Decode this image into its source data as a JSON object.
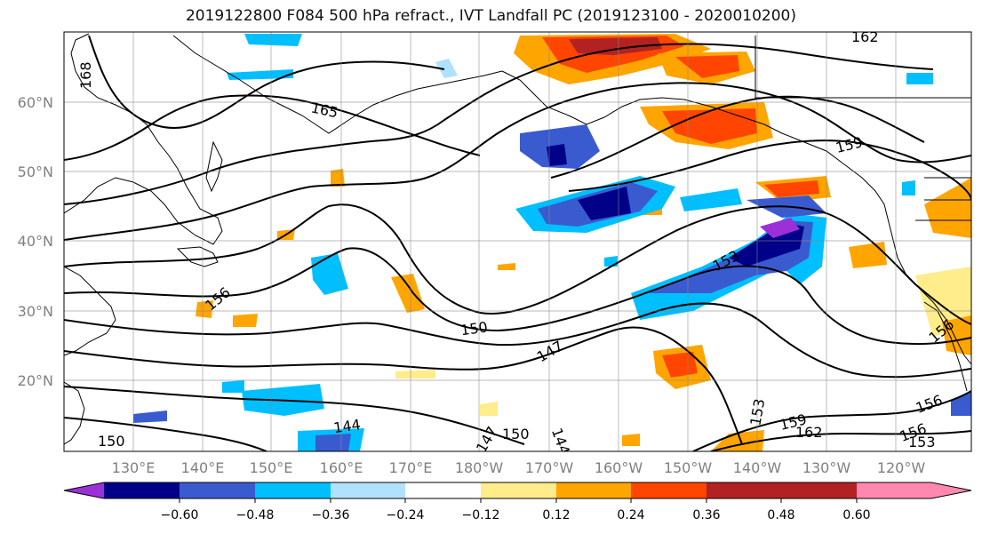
{
  "title": "2019122800 F084 500 hPa refract., IVT Landfall PC (2019123100 - 2020010200)",
  "map": {
    "lat_labels": [
      "60°N",
      "50°N",
      "40°N",
      "30°N",
      "20°N"
    ],
    "lon_labels": [
      "130°E",
      "140°E",
      "150°E",
      "160°E",
      "170°E",
      "180°W",
      "170°W",
      "160°W",
      "150°W",
      "140°W",
      "130°W",
      "120°W"
    ],
    "contour_labels": [
      "168",
      "165",
      "159",
      "162",
      "156",
      "153",
      "150",
      "147",
      "144",
      "159",
      "162",
      "153",
      "156",
      "156",
      "153",
      "150",
      "147",
      "150",
      "144",
      "156"
    ]
  },
  "colorbar": {
    "colors": [
      "#9b30d9",
      "#000089",
      "#3a5bd0",
      "#00bfff",
      "#b0e2ff",
      "#ffffff",
      "#ffec8b",
      "#ffa500",
      "#ff4500",
      "#b22222",
      "#ff88b0"
    ],
    "tick_labels": [
      "−0.60",
      "−0.48",
      "−0.36",
      "−0.24",
      "−0.12",
      "0.12",
      "0.24",
      "0.36",
      "0.48",
      "0.60"
    ]
  }
}
